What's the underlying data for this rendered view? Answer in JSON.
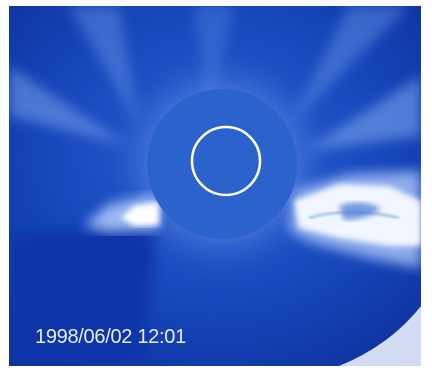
{
  "image": {
    "timestamp": "1998/06/02 12:01",
    "colors": {
      "background": "#0f3bb3",
      "corona_glow": "#cfe0ff",
      "occulter": "#2b62cc",
      "solar_limb_circle": "#ffffff",
      "bright_streamer": "#ffffff",
      "timestamp_text": "#e8eefc"
    }
  }
}
